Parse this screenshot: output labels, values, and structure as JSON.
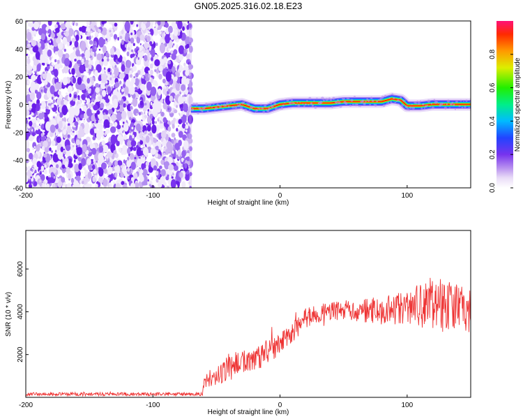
{
  "title": "GN05.2025.316.02.18.E23",
  "chart_data": [
    {
      "type": "heatmap",
      "xlabel": "Height of straight line (km)",
      "ylabel": "Frequency (Hz)",
      "xlim": [
        -200,
        150
      ],
      "ylim": [
        -60,
        60
      ],
      "xticks": [
        -200,
        -100,
        0,
        100
      ],
      "yticks": [
        60,
        40,
        20,
        0,
        -20,
        -40,
        -60
      ],
      "noise_region_x": [
        -200,
        -70
      ],
      "ridge": {
        "x": [
          -70,
          -60,
          -50,
          -40,
          -30,
          -20,
          -10,
          0,
          10,
          20,
          30,
          40,
          50,
          60,
          70,
          80,
          88,
          95,
          100,
          110,
          120,
          130,
          140,
          150
        ],
        "freq": [
          -3,
          -3,
          -2,
          -1,
          0,
          -3,
          -3,
          0,
          1,
          1,
          1,
          1,
          2,
          2,
          2,
          2,
          4,
          3,
          -1,
          -1,
          0,
          0,
          0,
          0
        ]
      },
      "colorbar": {
        "label": "Normalized spectral amplitude",
        "ticks": [
          0.0,
          0.2,
          0.4,
          0.6,
          0.8
        ],
        "range": [
          0,
          1
        ]
      }
    },
    {
      "type": "line",
      "xlabel": "Height of straight line (km)",
      "ylabel": "SNR (10 * v/v)",
      "xlim": [
        -200,
        150
      ],
      "ylim": [
        0,
        7800
      ],
      "xticks": [
        -200,
        -100,
        0,
        100
      ],
      "yticks": [
        2000,
        4000,
        6000
      ],
      "series": [
        {
          "name": "SNR",
          "color": "#ee3333",
          "x": [
            -200,
            -150,
            -100,
            -70,
            -61,
            -60,
            -55,
            -50,
            -45,
            -40,
            -30,
            -20,
            -10,
            0,
            10,
            20,
            30,
            40,
            50,
            60,
            70,
            80,
            90,
            100,
            110,
            120,
            130,
            140,
            150
          ],
          "y": [
            150,
            150,
            150,
            150,
            150,
            700,
            900,
            1000,
            1200,
            1500,
            1600,
            1800,
            2100,
            2500,
            3000,
            3700,
            3900,
            4000,
            4100,
            4000,
            4050,
            4050,
            4100,
            4200,
            4300,
            4500,
            4200,
            4200,
            4000
          ],
          "noise": [
            80,
            80,
            80,
            80,
            80,
            300,
            400,
            450,
            500,
            600,
            600,
            600,
            600,
            500,
            500,
            450,
            450,
            450,
            450,
            500,
            600,
            650,
            700,
            900,
            1100,
            1300,
            1300,
            1100,
            1000
          ]
        }
      ]
    }
  ]
}
